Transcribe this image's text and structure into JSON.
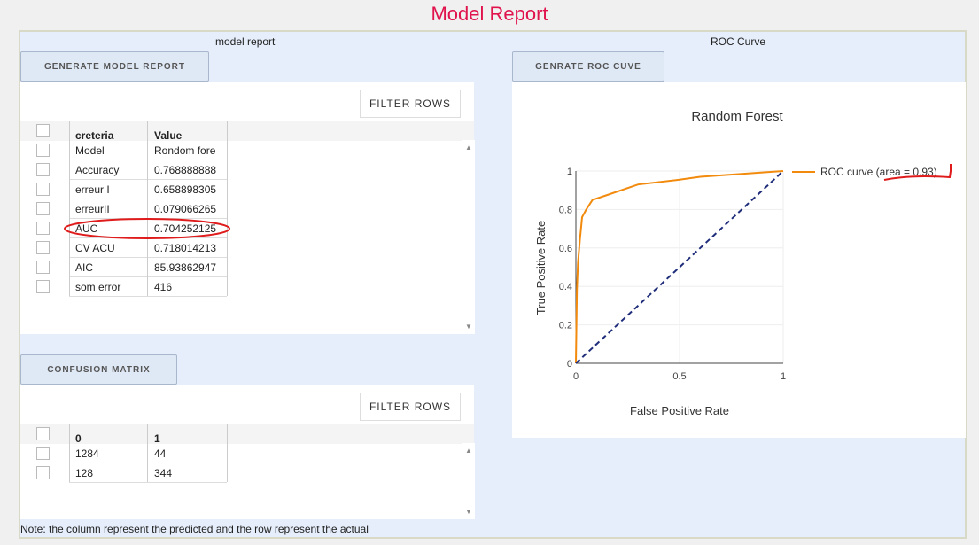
{
  "page": {
    "title": "Model Report",
    "note": "Note: the column represent the predicted and the row represent the actual"
  },
  "left": {
    "section_label": "model report",
    "generate_button": "GENERATE MODEL REPORT",
    "filter_button": "FILTER ROWS",
    "columns": [
      "creteria",
      "Value"
    ],
    "rows": [
      [
        "Model",
        "Rondom fore"
      ],
      [
        "Accuracy",
        "0.768888888"
      ],
      [
        "erreur I",
        "0.658898305"
      ],
      [
        "erreurII",
        "0.079066265"
      ],
      [
        "AUC",
        "0.704252125"
      ],
      [
        "CV ACU",
        "0.718014213"
      ],
      [
        "AIC",
        "85.93862947"
      ],
      [
        "som error",
        "416"
      ]
    ]
  },
  "confusion": {
    "button": "CONFUSION MATRIX",
    "filter_button": "FILTER ROWS",
    "columns": [
      "0",
      "1"
    ],
    "rows": [
      [
        "1284",
        "44"
      ],
      [
        "128",
        "344"
      ]
    ]
  },
  "roc": {
    "section_label": "ROC Curve",
    "button": "GENRATE ROC CUVE"
  },
  "chart_data": {
    "type": "line",
    "title": "Random Forest",
    "xlabel": "False Positive Rate",
    "ylabel": "True Positive Rate",
    "xlim": [
      0,
      1
    ],
    "ylim": [
      0,
      1
    ],
    "x_ticks": [
      "0",
      "0.5",
      "1"
    ],
    "y_ticks": [
      "0",
      "0.2",
      "0.4",
      "0.6",
      "0.8",
      "1"
    ],
    "legend_position": "right",
    "series": [
      {
        "name": "ROC curve (area = 0.93)",
        "color": "#f28a0d",
        "x": [
          0,
          0.005,
          0.01,
          0.02,
          0.03,
          0.05,
          0.08,
          0.15,
          0.3,
          0.5,
          0.6,
          0.8,
          1.0
        ],
        "y": [
          0,
          0.38,
          0.52,
          0.65,
          0.76,
          0.8,
          0.85,
          0.875,
          0.93,
          0.955,
          0.97,
          0.985,
          1.0
        ]
      },
      {
        "name": "",
        "color": "#1f2d7a",
        "dash": true,
        "x": [
          0,
          1
        ],
        "y": [
          0,
          1
        ]
      }
    ]
  }
}
